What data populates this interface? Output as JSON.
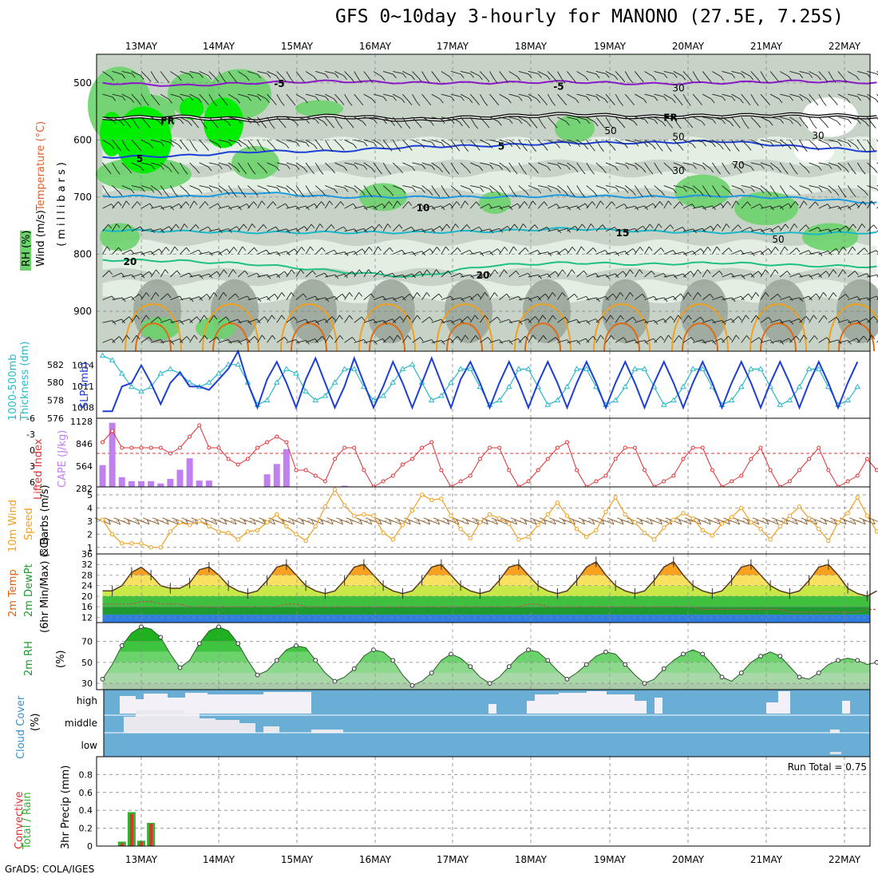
{
  "title": "GFS 0~10day 3-hourly for MANONO (27.5E, 7.25S)",
  "credit": "GrADS: COLA/IGES",
  "colors": {
    "rh_dark": "#9aa79a",
    "rh_mid": "#c8d3c8",
    "rh_light": "#e6f0e6",
    "rh_green": "#6cd36c",
    "rh_bright": "#00ee00",
    "slp": "#1e3fd6",
    "thickness": "#2ab8c8",
    "li": "#e03030",
    "cape": "#c080f0",
    "wind10": "#f0a020",
    "cloud": "#6aaed6",
    "cloud_white": "#f4f0f8",
    "precip_total": "#2fb52f",
    "precip_conv": "#e03030"
  },
  "chart_data": [
    {
      "id": "upper-air",
      "type": "heatmap",
      "x_ticks": [
        "13MAY",
        "14MAY",
        "15MAY",
        "16MAY",
        "17MAY",
        "18MAY",
        "19MAY",
        "20MAY",
        "21MAY",
        "22MAY"
      ],
      "ylabel": "(millibars)",
      "y_ticks": [
        500,
        600,
        700,
        800,
        900
      ],
      "ylim": [
        450,
        970
      ],
      "left_labels": [
        "RH (%)",
        "Temperature (°C)",
        "Wind (m/s)"
      ],
      "isotherm_labels": [
        "-5",
        "-5",
        "FR",
        "FR",
        "5",
        "5",
        "10",
        "15",
        "20",
        "20"
      ],
      "rh_labels": [
        "30",
        "50",
        "50",
        "30",
        "30",
        "70",
        "50"
      ],
      "isotherms": [
        {
          "label": "-5",
          "p": [
            500,
            505,
            500,
            497,
            500,
            500,
            498,
            502,
            500,
            497,
            500
          ],
          "color": "#8a1ac8"
        },
        {
          "label": "FR",
          "p": [
            562,
            560,
            565,
            558,
            565,
            560,
            555,
            560,
            558,
            556,
            560
          ],
          "color": "#000000"
        },
        {
          "label": "5",
          "p": [
            630,
            628,
            620,
            620,
            612,
            610,
            605,
            605,
            602,
            612,
            620
          ],
          "color": "#1e3fd6"
        },
        {
          "label": "10",
          "p": [
            698,
            700,
            692,
            700,
            700,
            700,
            698,
            700,
            698,
            702,
            710
          ],
          "color": "#1e9be0"
        },
        {
          "label": "15",
          "p": [
            758,
            760,
            762,
            762,
            762,
            760,
            755,
            760,
            762,
            764,
            762
          ],
          "color": "#18b8c8"
        },
        {
          "label": "20",
          "p": [
            810,
            812,
            818,
            830,
            840,
            820,
            815,
            818,
            815,
            820,
            822
          ],
          "color": "#20c080"
        }
      ]
    },
    {
      "id": "slp-thickness",
      "type": "line",
      "left_labels": [
        "1000-500mb",
        "Thickness (dm)",
        "SLP (mb)"
      ],
      "y_ticks_left": [
        576,
        578,
        580,
        582
      ],
      "y_ticks_right": [
        1008,
        1011,
        1014
      ],
      "ylim_left": [
        576,
        583.5
      ],
      "ylim_right": [
        1006.5,
        1016
      ],
      "series": [
        {
          "name": "SLP (mb)",
          "axis": "right",
          "values": [
            1007.5,
            1007.5,
            1011,
            1011.5,
            1014,
            1011.5,
            1008.5,
            1011.5,
            1013,
            1011,
            1011,
            1010.5,
            1012,
            1013.5,
            1016,
            1011.5,
            1008,
            1012,
            1014.5,
            1011.5,
            1008,
            1012,
            1015,
            1011.5,
            1008,
            1011,
            1015,
            1011.5,
            1008,
            1011,
            1014.5,
            1011.5,
            1008,
            1011.5,
            1015,
            1011.5,
            1008,
            1012,
            1014.5,
            1011.5,
            1008,
            1011.5,
            1014.5,
            1011.5,
            1008,
            1011.5,
            1014.5,
            1011.5,
            1008,
            1011.5,
            1014.5,
            1011.5,
            1008,
            1011.5,
            1014.5,
            1011.5,
            1008,
            1011.5,
            1014.5,
            1011.5,
            1008,
            1011.5,
            1014.5,
            1011.5,
            1008,
            1011.5,
            1014.5,
            1011.5,
            1008,
            1011.5,
            1014.5,
            1011.5,
            1008,
            1011.5,
            1014.5,
            1011.5,
            1008,
            1011.5,
            1014.5
          ]
        },
        {
          "name": "Thickness (dm)",
          "axis": "left",
          "values": [
            583,
            582.5,
            581,
            579.5,
            579,
            579.5,
            581,
            581.5,
            581,
            580,
            579.5,
            580,
            581,
            582,
            582,
            580,
            577.5,
            578,
            580,
            581.5,
            581,
            579,
            578,
            578.5,
            580,
            581.5,
            581.5,
            579.5,
            578,
            578.5,
            580,
            581.5,
            582,
            580,
            578,
            578.5,
            580,
            581.5,
            581.5,
            579.5,
            577.5,
            578,
            579.5,
            581.5,
            581.5,
            579.5,
            577.5,
            578,
            579.5,
            581.5,
            581.5,
            579.5,
            577.5,
            578,
            579.5,
            581.5,
            581.5,
            579.5,
            577.5,
            578,
            579.5,
            581.5,
            581.5,
            579.5,
            577.5,
            578,
            579.5,
            581.5,
            581.5,
            579.5,
            577.5,
            578,
            579.5,
            581.5,
            581.5,
            579.5,
            577.5,
            578,
            579.5
          ]
        }
      ]
    },
    {
      "id": "li-cape",
      "type": "bar",
      "left_labels": [
        "Lifted Index",
        "CAPE (J/kg)"
      ],
      "y_ticks_li": [
        "-6",
        "-3",
        "0",
        "3",
        "6"
      ],
      "y_ticks_cape": [
        "1128",
        "846",
        "564",
        "282"
      ],
      "cape_bars": [
        380,
        1120,
        170,
        100,
        100,
        100,
        60,
        140,
        300,
        500,
        110,
        110,
        0,
        0,
        0,
        0,
        0,
        220,
        400,
        660,
        0,
        0,
        0,
        0,
        0,
        20,
        0,
        0,
        0,
        0,
        0,
        0,
        0,
        0,
        0,
        0,
        0,
        0,
        0,
        0,
        0,
        0,
        0,
        0,
        0,
        0,
        0,
        0,
        0,
        0,
        0,
        0,
        0,
        0,
        0,
        0,
        0,
        0,
        0,
        0,
        0,
        0,
        0,
        0,
        0,
        0,
        0,
        0,
        0,
        0,
        0,
        0,
        0,
        0,
        0,
        0,
        0,
        0,
        0,
        0,
        0
      ],
      "li_line": [
        -2,
        -4,
        -1,
        -1,
        -1,
        -1,
        -1,
        0,
        -1,
        -3,
        -5,
        -1,
        -1,
        1,
        2,
        1,
        -1,
        -2,
        -3,
        -2,
        3,
        3,
        4,
        5,
        1,
        -1,
        -1,
        3,
        6,
        5,
        4,
        2,
        1,
        -1,
        -2,
        3,
        6,
        5,
        4,
        1,
        -1,
        -1,
        3,
        6,
        5,
        3,
        1,
        -1,
        -2,
        3,
        6,
        5,
        4,
        1,
        -1,
        -1,
        3,
        6,
        5,
        4,
        1,
        -1,
        -1,
        3,
        6,
        5,
        4,
        1,
        -1,
        3,
        6,
        5,
        3,
        1,
        -1,
        3,
        6,
        5,
        4,
        1,
        3
      ]
    },
    {
      "id": "wind10",
      "type": "line",
      "left_labels": [
        "10m Wind",
        "Speed",
        "& Barbs (m/s)"
      ],
      "y_ticks": [
        1,
        2,
        3,
        4,
        5
      ],
      "ylim": [
        0.5,
        5.6
      ],
      "values": [
        3.1,
        2.0,
        1.3,
        1.3,
        1.3,
        1.0,
        1.0,
        2.2,
        2.9,
        2.7,
        3.0,
        2.6,
        2.2,
        2.1,
        1.6,
        2.2,
        2.3,
        2.9,
        3.5,
        2.6,
        2.0,
        1.5,
        2.6,
        4.1,
        5.4,
        4.2,
        3.4,
        3.5,
        3.4,
        2.1,
        1.6,
        2.7,
        3.8,
        5.0,
        4.6,
        4.7,
        3.4,
        2.4,
        1.7,
        2.9,
        3.5,
        3.2,
        2.8,
        1.6,
        1.8,
        2.7,
        3.5,
        4.4,
        3.4,
        2.4,
        1.8,
        2.3,
        3.7,
        4.8,
        3.5,
        2.9,
        2.1,
        1.6,
        2.5,
        3.1,
        3.6,
        3.2,
        2.3,
        1.9,
        2.8,
        3.3,
        4.0,
        2.9,
        2.4,
        1.6,
        2.6,
        3.4,
        4.1,
        3.2,
        2.4,
        1.5,
        2.9,
        3.6,
        4.8,
        3.4,
        2.2,
        2.0,
        2.3,
        2.6,
        3.5,
        3.2
      ]
    },
    {
      "id": "temp2m",
      "type": "area",
      "left_labels": [
        "2m Temp",
        "2m DewPt",
        "(6hr Min/Max) (°C)"
      ],
      "y_ticks": [
        12,
        16,
        20,
        24,
        28,
        32,
        36
      ],
      "ylim": [
        10,
        36
      ],
      "temp": [
        22,
        22,
        24,
        29,
        31,
        28,
        24,
        23,
        23,
        25,
        30,
        31,
        28,
        24,
        22,
        21,
        22,
        26,
        31,
        32,
        28,
        24,
        22,
        21,
        22,
        26,
        31,
        32,
        28,
        24,
        22,
        21,
        22,
        26,
        31,
        32,
        28,
        24,
        22,
        21,
        22,
        26,
        31,
        32,
        28,
        24,
        22,
        21,
        22,
        26,
        31,
        33,
        28,
        24,
        22,
        21,
        22,
        26,
        31,
        33,
        28,
        24,
        22,
        21,
        22,
        26,
        31,
        32,
        28,
        24,
        22,
        21,
        22,
        26,
        31,
        32,
        28,
        23,
        21,
        20,
        22
      ],
      "dew": [
        17,
        17,
        17,
        17,
        18,
        18,
        17,
        17,
        17,
        16,
        16,
        16,
        16,
        16,
        16,
        16,
        16,
        16,
        16,
        17,
        17,
        16,
        16,
        16,
        16,
        16,
        16,
        16,
        16,
        16,
        16,
        16,
        16,
        16,
        16,
        16,
        16,
        16,
        16,
        16,
        16,
        16,
        16,
        16,
        17,
        17,
        16,
        16,
        16,
        16,
        16,
        16,
        16,
        16,
        16,
        16,
        16,
        16,
        16,
        16,
        16,
        16,
        15,
        15,
        15,
        15,
        15,
        15,
        15,
        15,
        15,
        14,
        14,
        14,
        14,
        14,
        14,
        14,
        14,
        15,
        15
      ]
    },
    {
      "id": "rh2m",
      "type": "area",
      "left_labels": [
        "2m RH",
        "(%)"
      ],
      "y_ticks": [
        30,
        50,
        70
      ],
      "ylim": [
        24,
        88
      ],
      "values": [
        34,
        48,
        66,
        78,
        84,
        82,
        74,
        58,
        45,
        52,
        68,
        80,
        84,
        80,
        68,
        52,
        38,
        42,
        52,
        62,
        66,
        64,
        52,
        40,
        32,
        36,
        44,
        56,
        62,
        60,
        52,
        38,
        28,
        32,
        40,
        52,
        58,
        54,
        46,
        36,
        30,
        36,
        46,
        56,
        62,
        60,
        52,
        42,
        34,
        40,
        48,
        56,
        60,
        58,
        48,
        38,
        30,
        34,
        44,
        52,
        58,
        62,
        58,
        48,
        36,
        32,
        40,
        50,
        56,
        60,
        56,
        46,
        36,
        34,
        40,
        48,
        52,
        54,
        52,
        48,
        50
      ]
    },
    {
      "id": "cloud",
      "type": "bar",
      "left_labels": [
        "Cloud Cover",
        "(%)"
      ],
      "levels": [
        "high",
        "middle",
        "low"
      ]
    },
    {
      "id": "precip",
      "type": "bar",
      "left_labels": [
        "Total / Rain",
        "Convective",
        "3hr Precip (mm)"
      ],
      "run_total": "Run Total = 0.75",
      "y_ticks": [
        "0",
        "0.2",
        "0.4",
        "0.6",
        "0.8"
      ],
      "ylim": [
        0,
        1.0
      ],
      "bars": [
        {
          "idx": 2,
          "total": 0.05,
          "conv": 0.03
        },
        {
          "idx": 3,
          "total": 0.38,
          "conv": 0.36
        },
        {
          "idx": 4,
          "total": 0.06,
          "conv": 0.05
        },
        {
          "idx": 5,
          "total": 0.26,
          "conv": 0.25
        }
      ]
    }
  ],
  "date_axis": [
    "13MAY",
    "14MAY",
    "15MAY",
    "16MAY",
    "17MAY",
    "18MAY",
    "19MAY",
    "20MAY",
    "21MAY",
    "22MAY"
  ]
}
